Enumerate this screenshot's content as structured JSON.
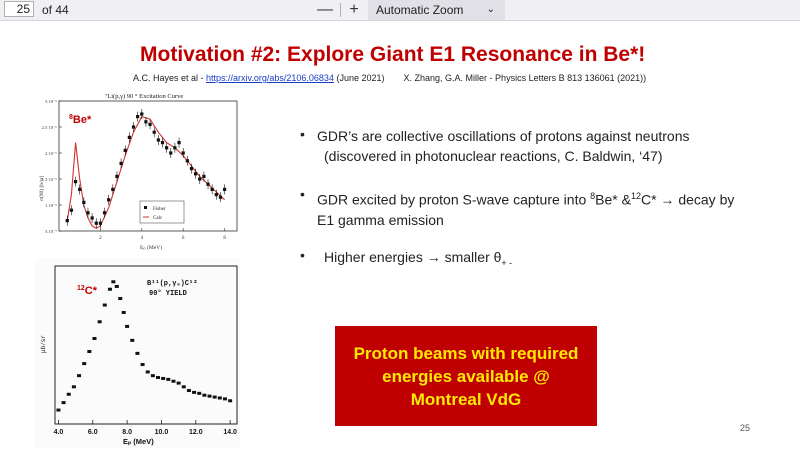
{
  "toolbar": {
    "page_number": "25",
    "page_count": "of 44",
    "zoom_out_label": "—",
    "zoom_in_label": "+",
    "zoom_value": "Automatic Zoom",
    "zoom_chevron": "⌄"
  },
  "slide": {
    "title": "Motivation #2:   Explore Giant E1 Resonance in Be*!",
    "refs": {
      "left_prefix": "A.C. Hayes et al - ",
      "left_link": "https://arxiv.org/abs/2106.06834",
      "left_suffix": " (June 2021)",
      "right": "X. Zhang, G.A. Miller - Physics Letters B 813 136061 (2021))"
    },
    "be_plot": {
      "label_sup": "8",
      "label_main": "Be*",
      "title": "⁷Li(p,γ) 90 ° Excitation Curve",
      "y_ticks": [
        "3.10⁻⁶",
        "2.5 10⁻⁶",
        "2.10⁻⁶",
        "1.5 10⁻⁶",
        "1.10⁻⁶",
        "5.10⁻⁷"
      ],
      "y_label": "σ(90) [b/sr]",
      "x_ticks": [
        "2",
        "4",
        "6",
        "8"
      ],
      "x_label": "Eₚ (MeV)",
      "legend_fisher": "Fisher",
      "legend_calc": "Calc"
    },
    "c_plot": {
      "label_sup": "12",
      "label_main": "C*",
      "reaction": "B¹¹(p,γ₀)C¹²",
      "yield": "90° YIELD",
      "y_label": "μb/sr",
      "x_ticks": [
        "4.0",
        "6.0",
        "8.0",
        "10.0",
        "12.0",
        "14.0"
      ],
      "x_label": "Eₚ (MeV)"
    },
    "bullets": [
      {
        "dot": "•",
        "line1": "GDR’s are collective oscillations of protons against neutrons",
        "line2": "(discovered in photonuclear reactions, C. Baldwin, ‘47)"
      },
      {
        "dot": "•",
        "pre": "GDR excited by proton S-wave capture into ",
        "sup1": "8",
        "mid": "Be* &",
        "sup2": "12",
        "post": "C* → decay by",
        "line2": "E1 gamma emission"
      },
      {
        "dot": "•",
        "pre": "Higher energies → smaller θ",
        "sub": "+ -"
      }
    ],
    "callout": {
      "line1": "Proton beams with required",
      "line2": "energies available @",
      "line3": "Montreal VdG"
    },
    "slide_number": "25"
  },
  "colors": {
    "title_red": "#c00000",
    "callout_bg": "#c00000",
    "callout_text": "#ffea00",
    "link_blue": "#1a3dc8"
  },
  "chart_data": [
    {
      "type": "scatter",
      "title": "⁷Li(p,γ) 90 ° Excitation Curve",
      "xlabel": "Eₚ (MeV)",
      "ylabel": "σ(90) [b/sr]",
      "series": [
        {
          "name": "Fisher",
          "x": [
            0.4,
            0.6,
            0.8,
            1.0,
            1.2,
            1.4,
            1.6,
            1.8,
            2.0,
            2.2,
            2.4,
            2.6,
            2.8,
            3.0,
            3.2,
            3.4,
            3.6,
            3.8,
            4.0,
            4.2,
            4.4,
            4.6,
            4.8,
            5.0,
            5.2,
            5.4,
            5.6,
            5.8,
            6.0,
            6.2,
            6.4,
            6.6,
            6.8,
            7.0,
            7.2,
            7.4,
            7.6,
            7.8,
            8.0
          ],
          "y": [
            7e-07,
            9e-07,
            1.45e-06,
            1.3e-06,
            1.05e-06,
            8.5e-07,
            7.5e-07,
            6.5e-07,
            6.5e-07,
            8.5e-07,
            1.1e-06,
            1.3e-06,
            1.55e-06,
            1.8e-06,
            2.05e-06,
            2.3e-06,
            2.5e-06,
            2.7e-06,
            2.75e-06,
            2.6e-06,
            2.55e-06,
            2.4e-06,
            2.25e-06,
            2.2e-06,
            2.1e-06,
            2e-06,
            2.1e-06,
            2.2e-06,
            2e-06,
            1.85e-06,
            1.7e-06,
            1.6e-06,
            1.5e-06,
            1.55e-06,
            1.4e-06,
            1.3e-06,
            1.2e-06,
            1.15e-06,
            1.3e-06
          ]
        },
        {
          "name": "Calc",
          "x": [
            0.4,
            0.6,
            0.8,
            1.0,
            1.2,
            1.4,
            1.6,
            1.8,
            2.0,
            2.4,
            2.8,
            3.2,
            3.6,
            4.0,
            4.4,
            4.8,
            5.2,
            5.6,
            6.0,
            6.4,
            6.8,
            7.2,
            7.6,
            8.0
          ],
          "y": [
            7e-07,
            1.2e-06,
            2.2e-06,
            1.5e-06,
            1e-06,
            7.5e-07,
            6e-07,
            5.5e-07,
            6e-07,
            9.5e-07,
            1.45e-06,
            1.95e-06,
            2.4e-06,
            2.7e-06,
            2.65e-06,
            2.4e-06,
            2.2e-06,
            2.1e-06,
            1.95e-06,
            1.75e-06,
            1.55e-06,
            1.4e-06,
            1.25e-06,
            1.1e-06
          ]
        }
      ],
      "xlim": [
        0,
        8.6
      ],
      "ylim": [
        5e-07,
        3e-06
      ]
    },
    {
      "type": "scatter",
      "title": "",
      "xlabel": "Eₚ (MeV)",
      "ylabel": "μb/sr",
      "series": [
        {
          "x": [
            4.0,
            4.3,
            4.6,
            4.9,
            5.2,
            5.5,
            5.8,
            6.1,
            6.4,
            6.7,
            7.0,
            7.2,
            7.4,
            7.6,
            7.8,
            8.0,
            8.3,
            8.6,
            8.9,
            9.2,
            9.5,
            9.8,
            10.1,
            10.4,
            10.7,
            11.0,
            11.3,
            11.6,
            11.9,
            12.2,
            12.5,
            12.8,
            13.1,
            13.4,
            13.7,
            14.0
          ],
          "y": [
            1.5,
            2.3,
            3.2,
            4.0,
            5.2,
            6.5,
            7.8,
            9.2,
            11.0,
            12.8,
            14.5,
            15.3,
            14.8,
            13.5,
            12.0,
            10.5,
            9.0,
            7.6,
            6.4,
            5.6,
            5.2,
            5.0,
            4.9,
            4.8,
            4.6,
            4.4,
            4.0,
            3.6,
            3.4,
            3.3,
            3.1,
            3.0,
            2.9,
            2.8,
            2.7,
            2.5
          ]
        }
      ],
      "xlim": [
        3.8,
        14.4
      ],
      "ylim": [
        0,
        17
      ]
    }
  ]
}
